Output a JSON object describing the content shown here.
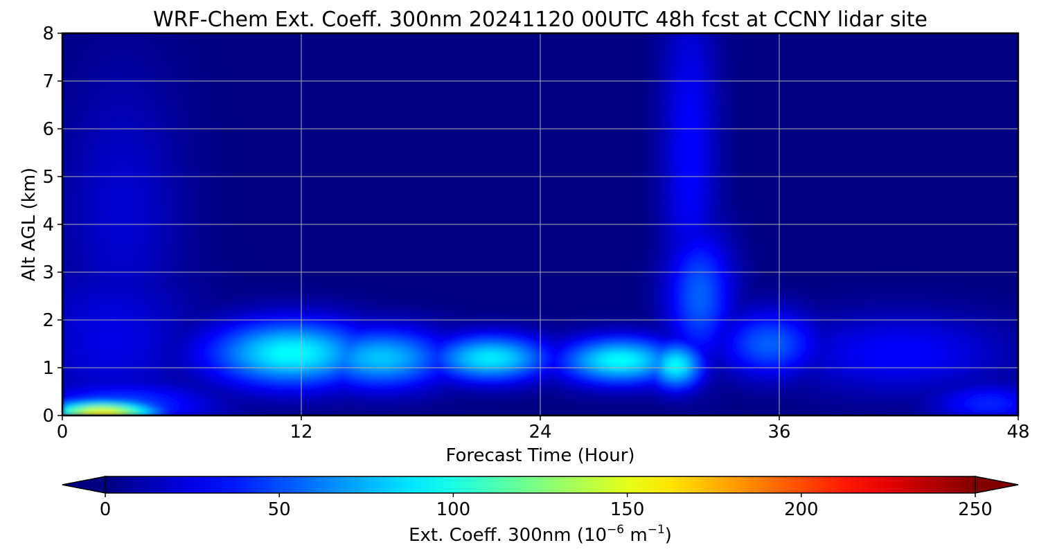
{
  "chart_data": {
    "type": "heatmap",
    "title": "WRF-Chem Ext. Coeff. 300nm  20241120 00UTC 48h fcst at CCNY lidar site",
    "xlabel": "Forecast Time (Hour)",
    "ylabel": "Alt AGL (km)",
    "xlim": [
      0,
      48
    ],
    "ylim": [
      0,
      8
    ],
    "x_ticks": [
      0,
      12,
      24,
      36,
      48
    ],
    "x_tick_labels": [
      "0",
      "12",
      "24",
      "36",
      "48"
    ],
    "y_ticks": [
      0,
      1,
      2,
      3,
      4,
      5,
      6,
      7,
      8
    ],
    "y_tick_labels": [
      "0",
      "1",
      "2",
      "3",
      "4",
      "5",
      "6",
      "7",
      "8"
    ],
    "grid": true,
    "colormap": "jet",
    "colorbar": {
      "orientation": "horizontal",
      "extend": "both",
      "range": [
        0,
        250
      ],
      "ticks": [
        0,
        50,
        100,
        150,
        200,
        250
      ],
      "tick_labels": [
        "0",
        "50",
        "100",
        "150",
        "200",
        "250"
      ],
      "label_prefix": "Ext. Coeff. 300nm  (10",
      "label_exp1": "−6",
      "label_mid": " m",
      "label_exp2": "−1",
      "label_suffix": ")"
    },
    "features": [
      {
        "name": "surface-layer",
        "t": 2.0,
        "z": 0.05,
        "st": 2.0,
        "sz": 0.18,
        "value": 160
      },
      {
        "name": "surface-layer-halo",
        "t": 3.0,
        "z": 0.2,
        "st": 3.2,
        "sz": 0.35,
        "value": 50
      },
      {
        "name": "early-column",
        "t": 3.0,
        "z": 4.2,
        "st": 2.2,
        "sz": 2.2,
        "value": 20
      },
      {
        "name": "lower-column",
        "t": 2.5,
        "z": 1.6,
        "st": 3.0,
        "sz": 1.2,
        "value": 25
      },
      {
        "name": "aloft-layer-a",
        "t": 11.5,
        "z": 1.3,
        "st": 3.0,
        "sz": 0.5,
        "value": 95
      },
      {
        "name": "aloft-layer-b",
        "t": 16.0,
        "z": 1.2,
        "st": 2.5,
        "sz": 0.45,
        "value": 80
      },
      {
        "name": "aloft-layer-c",
        "t": 21.5,
        "z": 1.2,
        "st": 2.2,
        "sz": 0.35,
        "value": 90
      },
      {
        "name": "aloft-layer-d",
        "t": 28.0,
        "z": 1.15,
        "st": 2.2,
        "sz": 0.35,
        "value": 95
      },
      {
        "name": "peak-core",
        "t": 30.8,
        "z": 1.05,
        "st": 1.0,
        "sz": 0.35,
        "value": 95
      },
      {
        "name": "plume-upper",
        "t": 31.5,
        "z": 5.5,
        "st": 1.0,
        "sz": 2.6,
        "value": 32
      },
      {
        "name": "plume-mid",
        "t": 32.0,
        "z": 2.5,
        "st": 1.2,
        "sz": 1.0,
        "value": 55
      },
      {
        "name": "post-peak-layer",
        "t": 35.5,
        "z": 1.5,
        "st": 1.8,
        "sz": 0.5,
        "value": 55
      },
      {
        "name": "late-layer",
        "t": 42.0,
        "z": 1.3,
        "st": 4.0,
        "sz": 0.6,
        "value": 32
      },
      {
        "name": "late-surface",
        "t": 46.5,
        "z": 0.25,
        "st": 2.0,
        "sz": 0.3,
        "value": 40
      }
    ]
  }
}
